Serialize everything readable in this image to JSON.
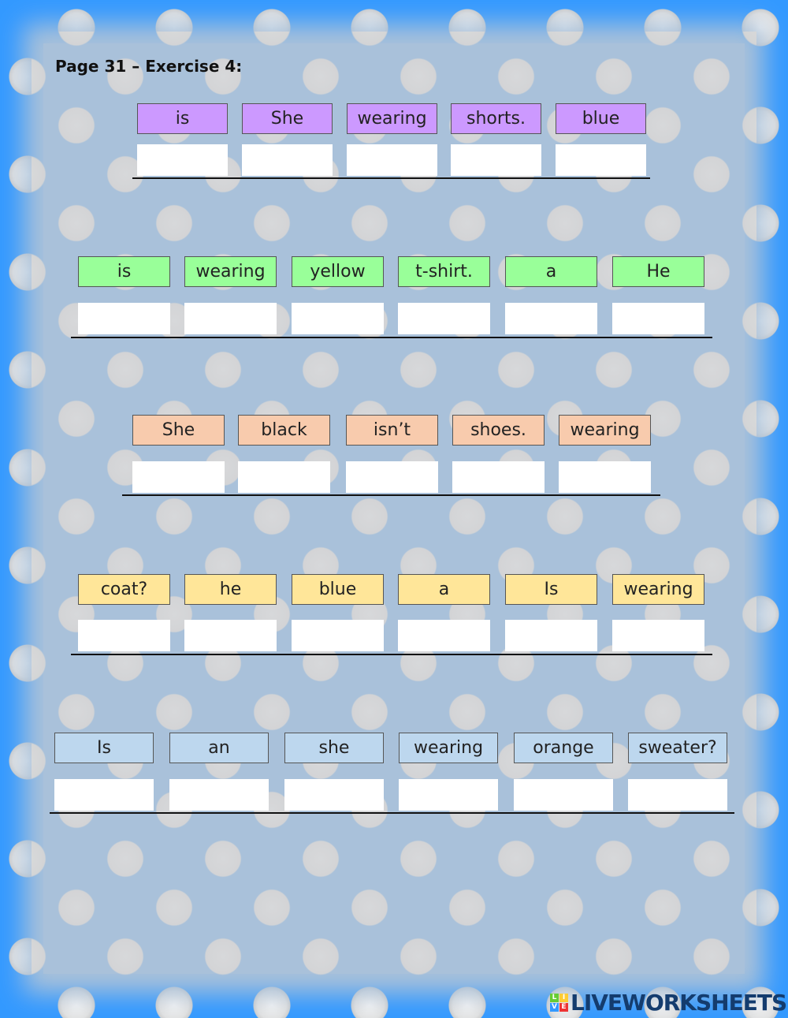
{
  "title": "Page 31 – Exercise 4:",
  "colors": {
    "purple": "#cc99ff",
    "green": "#99ff99",
    "orange": "#f8cbad",
    "yellow": "#ffe699",
    "blue": "#bdd7ee"
  },
  "exercises": [
    {
      "words": [
        "is",
        "She",
        "wearing",
        "shorts.",
        "blue"
      ]
    },
    {
      "words": [
        "is",
        "wearing",
        "yellow",
        "t-shirt.",
        "a",
        "He"
      ]
    },
    {
      "words": [
        "She",
        "black",
        "isn’t",
        "shoes.",
        "wearing"
      ]
    },
    {
      "words": [
        "coat?",
        "he",
        "blue",
        "a",
        "Is",
        "wearing"
      ]
    },
    {
      "words": [
        "Is",
        "an",
        "she",
        "wearing",
        "orange",
        "sweater?"
      ]
    }
  ],
  "logo": {
    "text": "LIVEWORKSHEETS",
    "letters": [
      "L",
      "I",
      "V",
      "E"
    ]
  }
}
